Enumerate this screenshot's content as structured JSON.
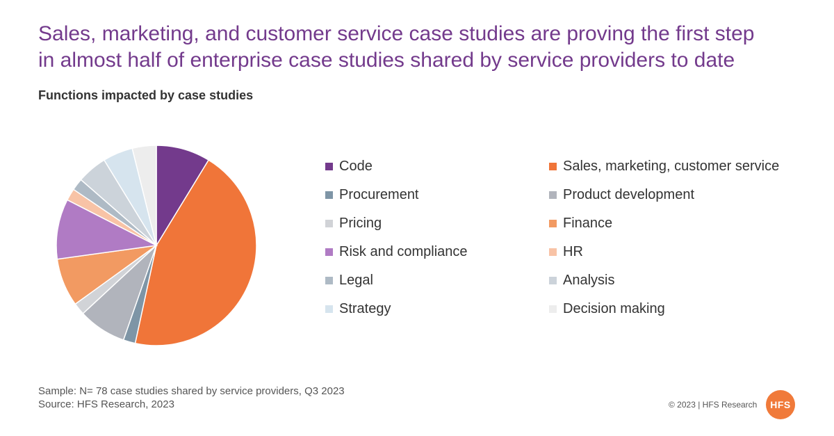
{
  "title": {
    "line1": "Sales, marketing, and customer service case studies are proving the first step",
    "line2": "in almost half of enterprise case studies shared by service providers to date"
  },
  "chart_data": {
    "type": "pie",
    "title": "Functions impacted by case studies",
    "legend_position": "right",
    "slices": [
      {
        "label": "Code",
        "value": 9,
        "color": "#733a8c"
      },
      {
        "label": "Sales, marketing, customer service",
        "value": 46,
        "color": "#f07539"
      },
      {
        "label": "Procurement",
        "value": 2,
        "color": "#7e95a6"
      },
      {
        "label": "Product development",
        "value": 8,
        "color": "#b1b4bc"
      },
      {
        "label": "Pricing",
        "value": 2,
        "color": "#d1d3d7"
      },
      {
        "label": "Finance",
        "value": 8,
        "color": "#f29a62"
      },
      {
        "label": "Risk and compliance",
        "value": 10,
        "color": "#b07bc4"
      },
      {
        "label": "HR",
        "value": 2,
        "color": "#f8c3a6"
      },
      {
        "label": "Legal",
        "value": 2,
        "color": "#aebac5"
      },
      {
        "label": "Analysis",
        "value": 5,
        "color": "#ccd3da"
      },
      {
        "label": "Strategy",
        "value": 5,
        "color": "#d6e4ee"
      },
      {
        "label": "Decision making",
        "value": 4,
        "color": "#ededed"
      }
    ]
  },
  "notes": {
    "sample": "Sample: N= 78 case studies shared by service providers, Q3 2023",
    "source": "Source: HFS Research, 2023"
  },
  "footer": {
    "copyright": "© 2023 | HFS Research",
    "logo_text": "HFS"
  }
}
